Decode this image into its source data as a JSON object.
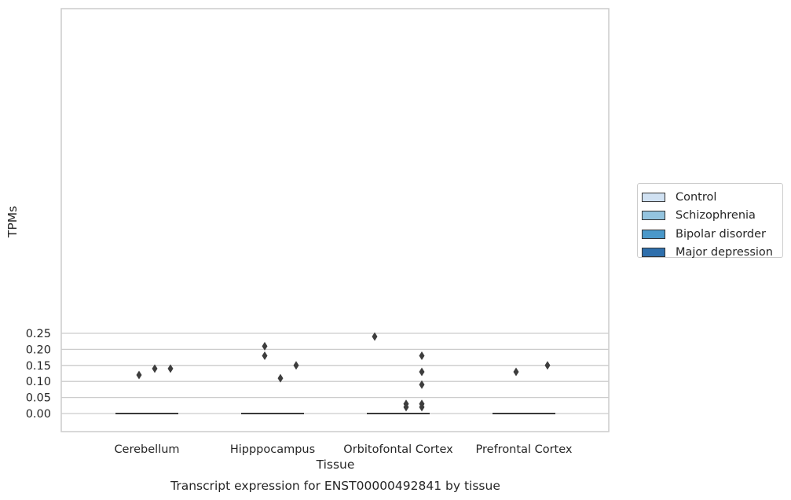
{
  "chart_data": {
    "type": "box",
    "title": "",
    "xlabel": "Tissue",
    "ylabel": "TPMs",
    "caption": "Transcript expression for ENST00000492841 by tissue",
    "ylim": [
      -0.0115,
      0.2525
    ],
    "yticks": [
      {
        "value": 0.0,
        "label": "0.00"
      },
      {
        "value": 0.05,
        "label": "0.05"
      },
      {
        "value": 0.1,
        "label": "0.10"
      },
      {
        "value": 0.15,
        "label": "0.15"
      },
      {
        "value": 0.2,
        "label": "0.20"
      },
      {
        "value": 0.25,
        "label": "0.25"
      }
    ],
    "grid": "horizontal",
    "legend_position": "right",
    "categories": [
      "Cerebellum",
      "Hipppocampus",
      "Orbitofontal Cortex",
      "Prefrontal Cortex"
    ],
    "series": [
      {
        "name": "Control",
        "color": "#d0e1f2",
        "median": [
          0,
          0,
          0,
          0
        ],
        "outliers": [
          [],
          [],
          [
            0.24
          ],
          []
        ]
      },
      {
        "name": "Schizophrenia",
        "color": "#94c4df",
        "median": [
          0,
          0,
          0,
          0
        ],
        "outliers": [
          [
            0.12
          ],
          [
            0.21,
            0.18
          ],
          [],
          [
            0.13
          ]
        ]
      },
      {
        "name": "Bipolar disorder",
        "color": "#4a98c9",
        "median": [
          0,
          0,
          0,
          0
        ],
        "outliers": [
          [
            0.14
          ],
          [
            0.11
          ],
          [
            0.03,
            0.02
          ],
          []
        ]
      },
      {
        "name": "Major depression",
        "color": "#2e6fac",
        "median": [
          0,
          0,
          0,
          0
        ],
        "outliers": [
          [
            0.14
          ],
          [
            0.15
          ],
          [
            0.18,
            0.13,
            0.09,
            0.03,
            0.02
          ],
          [
            0.15
          ]
        ]
      }
    ]
  }
}
